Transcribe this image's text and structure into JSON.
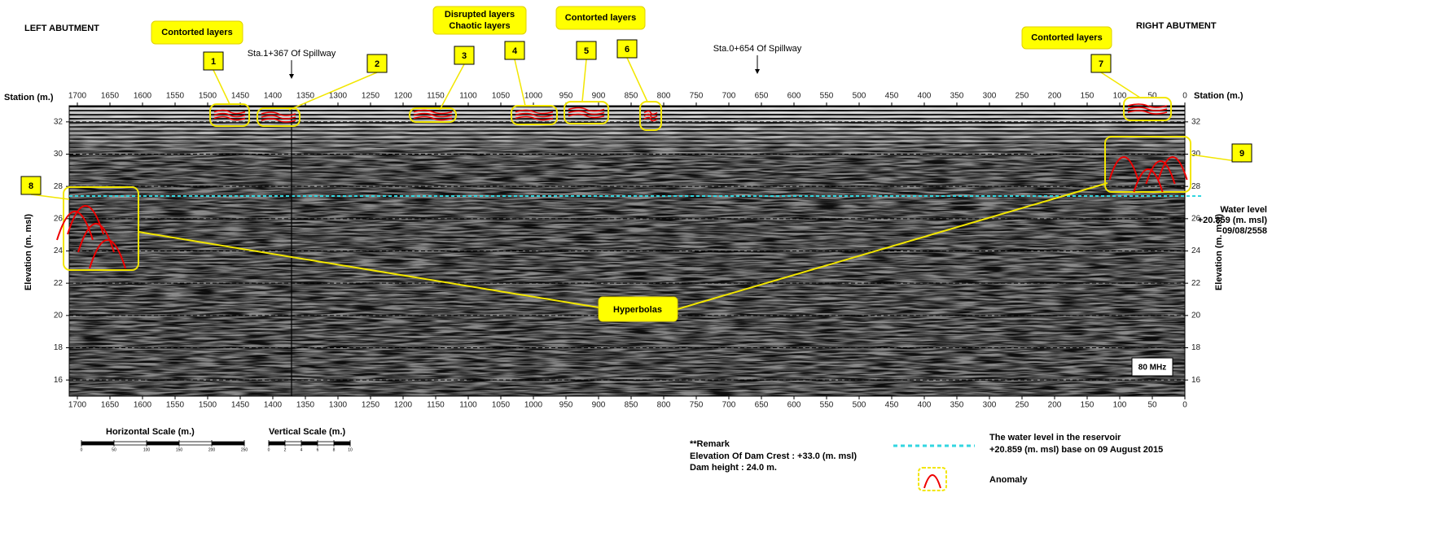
{
  "title_left": "LEFT ABUTMENT",
  "title_right": "RIGHT ABUTMENT",
  "axes": {
    "x_label": "Station (m.)",
    "y_label": "Elevation (m. msl)",
    "xlim": [
      1712.5,
      0
    ],
    "xticks": [
      1700,
      1650,
      1600,
      1550,
      1500,
      1450,
      1400,
      1350,
      1300,
      1250,
      1200,
      1150,
      1100,
      1050,
      1000,
      950,
      900,
      850,
      800,
      750,
      700,
      650,
      600,
      550,
      500,
      450,
      400,
      350,
      300,
      250,
      200,
      150,
      100,
      50,
      0
    ],
    "ylim": [
      15,
      33
    ],
    "yticks": [
      16,
      18,
      20,
      22,
      24,
      26,
      28,
      30,
      32
    ]
  },
  "stations": [
    "Sta.1+367 Of Spillway",
    "Sta.0+654 Of Spillway"
  ],
  "callouts": [
    [
      "Contorted layers"
    ],
    [
      "Disrupted  layers",
      "Chaotic layers"
    ],
    [
      "Contorted layers"
    ],
    [
      "Contorted layers"
    ]
  ],
  "anomaly_numbers": [
    1,
    2,
    3,
    4,
    5,
    6,
    7,
    8,
    9
  ],
  "hyperbolas": "Hyperbolas",
  "water_level": {
    "title": "Water level",
    "value": "+20.859 (m. msl)",
    "date": "09/08/2558"
  },
  "frequency": "80 MHz",
  "scales": {
    "horizontal": {
      "label": "Horizontal  Scale (m.)",
      "ticks": [
        0,
        50,
        100,
        150,
        200,
        250
      ]
    },
    "vertical": {
      "label": "Vertical  Scale (m.)",
      "ticks": [
        0,
        2,
        4,
        6,
        8,
        10
      ]
    }
  },
  "remark": {
    "heading": "**Remark",
    "lines": [
      "Elevation Of Dam Crest : +33.0 (m. msl)",
      "Dam height : 24.0 m."
    ]
  },
  "legend": {
    "water": [
      "The water level in the reservoir",
      "+20.859 (m. msl)  base on 09 August 2015"
    ],
    "anomaly": "Anomaly"
  }
}
